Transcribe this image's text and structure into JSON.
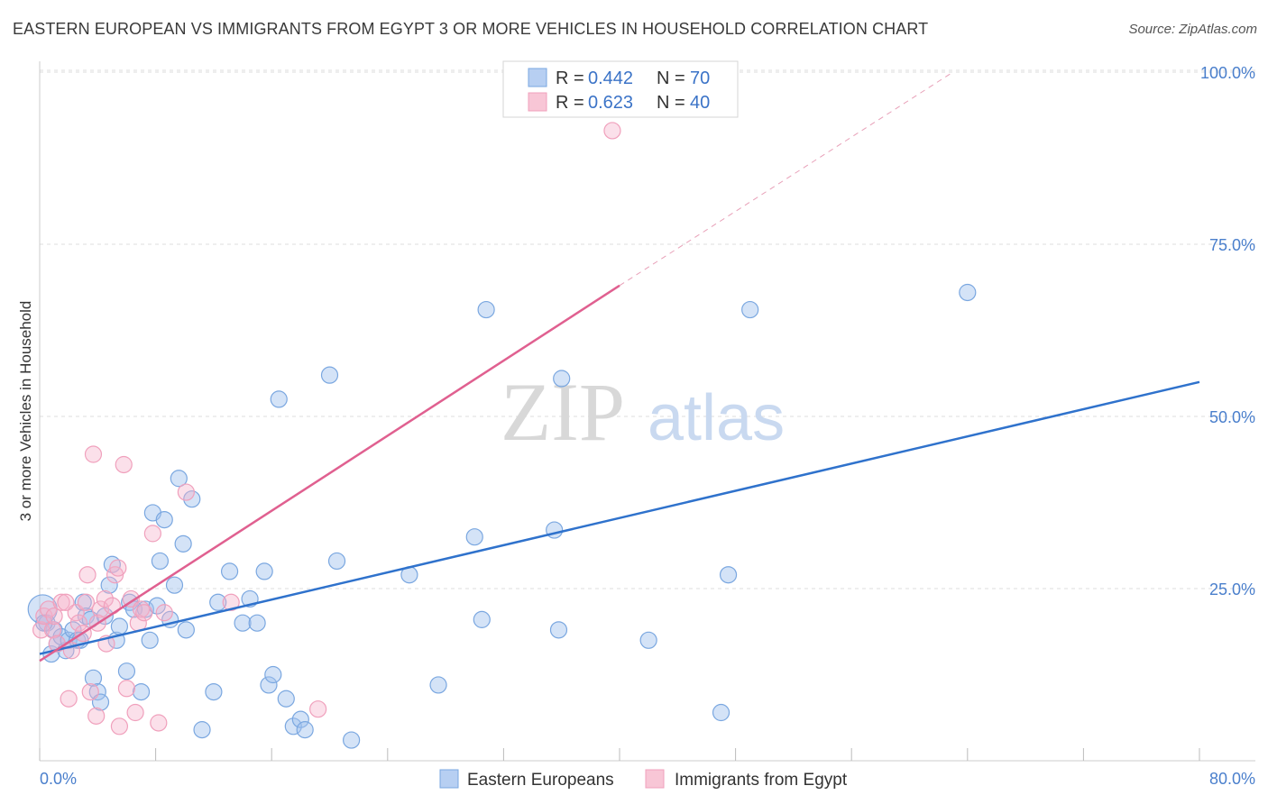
{
  "chart_data": {
    "type": "scatter",
    "title": "EASTERN EUROPEAN VS IMMIGRANTS FROM EGYPT 3 OR MORE VEHICLES IN HOUSEHOLD CORRELATION CHART",
    "source": "Source: ZipAtlas.com",
    "ylabel": "3 or more Vehicles in Household",
    "xlabel": "",
    "xlim": [
      0,
      80
    ],
    "ylim": [
      0,
      100
    ],
    "x_tick_labels": [
      "0.0%",
      "80.0%"
    ],
    "y_ticks": [
      25,
      50,
      75,
      100
    ],
    "y_tick_labels": [
      "25.0%",
      "50.0%",
      "75.0%",
      "100.0%"
    ],
    "watermark": {
      "zip": "ZIP",
      "atlas": "atlas"
    },
    "legend": {
      "position": "top-center",
      "entries": [
        {
          "r_label": "R =",
          "r_value": "0.442",
          "n_label": "N =",
          "n_value": "70"
        },
        {
          "r_label": "R =",
          "r_value": "0.623",
          "n_label": "N =",
          "n_value": "40"
        }
      ]
    },
    "series": [
      {
        "name": "Eastern Europeans",
        "color": "#7aa7e0",
        "line_color": "#2f72cc",
        "trend": {
          "x0": 0,
          "y0": 15.5,
          "x1": 80,
          "y1": 55
        },
        "points": [
          [
            0.2,
            22
          ],
          [
            0.5,
            20
          ],
          [
            0.8,
            15.5
          ],
          [
            1,
            19
          ],
          [
            1.2,
            17
          ],
          [
            1.5,
            18
          ],
          [
            1.8,
            16
          ],
          [
            2,
            17.5
          ],
          [
            2.3,
            19
          ],
          [
            2.6,
            17.5
          ],
          [
            3,
            23
          ],
          [
            3.2,
            21
          ],
          [
            3.5,
            20.5
          ],
          [
            3.7,
            12
          ],
          [
            4,
            10
          ],
          [
            4.2,
            8.5
          ],
          [
            4.5,
            21
          ],
          [
            4.8,
            25.5
          ],
          [
            5,
            28.5
          ],
          [
            5.3,
            17.5
          ],
          [
            5.5,
            19.5
          ],
          [
            6,
            13
          ],
          [
            6.2,
            23
          ],
          [
            6.5,
            22
          ],
          [
            7,
            10
          ],
          [
            7.3,
            22
          ],
          [
            7.6,
            17.5
          ],
          [
            7.8,
            36
          ],
          [
            8.1,
            22.5
          ],
          [
            8.3,
            29
          ],
          [
            8.6,
            35
          ],
          [
            9,
            20.5
          ],
          [
            9.3,
            25.5
          ],
          [
            9.6,
            41
          ],
          [
            9.9,
            31.5
          ],
          [
            10.1,
            19
          ],
          [
            10.5,
            38
          ],
          [
            11.2,
            4.5
          ],
          [
            12,
            10
          ],
          [
            12.3,
            23
          ],
          [
            13.1,
            27.5
          ],
          [
            15.5,
            27.5
          ],
          [
            14,
            20
          ],
          [
            14.5,
            23.5
          ],
          [
            15,
            20
          ],
          [
            15.8,
            11
          ],
          [
            16.1,
            12.5
          ],
          [
            16.5,
            52.5
          ],
          [
            17,
            9
          ],
          [
            17.5,
            5
          ],
          [
            18,
            6
          ],
          [
            18.3,
            4.5
          ],
          [
            20,
            56
          ],
          [
            20.5,
            29
          ],
          [
            21.5,
            3
          ],
          [
            25.5,
            27
          ],
          [
            27.5,
            11
          ],
          [
            30,
            32.5
          ],
          [
            30.5,
            20.5
          ],
          [
            30.8,
            65.5
          ],
          [
            35.5,
            33.5
          ],
          [
            35.8,
            19
          ],
          [
            36,
            55.5
          ],
          [
            42,
            17.5
          ],
          [
            47,
            7
          ],
          [
            47.5,
            27
          ],
          [
            49,
            65.5
          ],
          [
            64,
            68
          ],
          [
            0.3,
            20
          ],
          [
            2.8,
            17.5
          ]
        ]
      },
      {
        "name": "Immigrants from Egypt",
        "color": "#f0a0bc",
        "line_color": "#e06090",
        "trend": {
          "x0": 0,
          "y0": 14.5,
          "x1": 40,
          "y1": 69
        },
        "trend_extension": {
          "x0": 40,
          "y0": 69,
          "x1": 63,
          "y1": 100
        },
        "points": [
          [
            0.1,
            19
          ],
          [
            0.3,
            21
          ],
          [
            0.6,
            22
          ],
          [
            0.9,
            19
          ],
          [
            1.2,
            17
          ],
          [
            1.5,
            23
          ],
          [
            1.8,
            23
          ],
          [
            2,
            9
          ],
          [
            2.2,
            16
          ],
          [
            2.5,
            21.5
          ],
          [
            2.7,
            20
          ],
          [
            3,
            18.5
          ],
          [
            3.2,
            23
          ],
          [
            3.3,
            27
          ],
          [
            3.5,
            10
          ],
          [
            3.7,
            44.5
          ],
          [
            3.9,
            6.5
          ],
          [
            4.2,
            22
          ],
          [
            4.5,
            23.5
          ],
          [
            4.6,
            17
          ],
          [
            5,
            22.5
          ],
          [
            5.2,
            27
          ],
          [
            5.4,
            28
          ],
          [
            5.5,
            5
          ],
          [
            5.8,
            43
          ],
          [
            6,
            10.5
          ],
          [
            6.3,
            23.5
          ],
          [
            6.6,
            7
          ],
          [
            6.8,
            20
          ],
          [
            7,
            22
          ],
          [
            7.2,
            21.5
          ],
          [
            7.8,
            33
          ],
          [
            8.2,
            5.5
          ],
          [
            8.6,
            21.5
          ],
          [
            10.1,
            39
          ],
          [
            13.2,
            23
          ],
          [
            19.2,
            7.5
          ],
          [
            39.5,
            91.5
          ],
          [
            1,
            21
          ],
          [
            4,
            20
          ]
        ]
      }
    ]
  }
}
